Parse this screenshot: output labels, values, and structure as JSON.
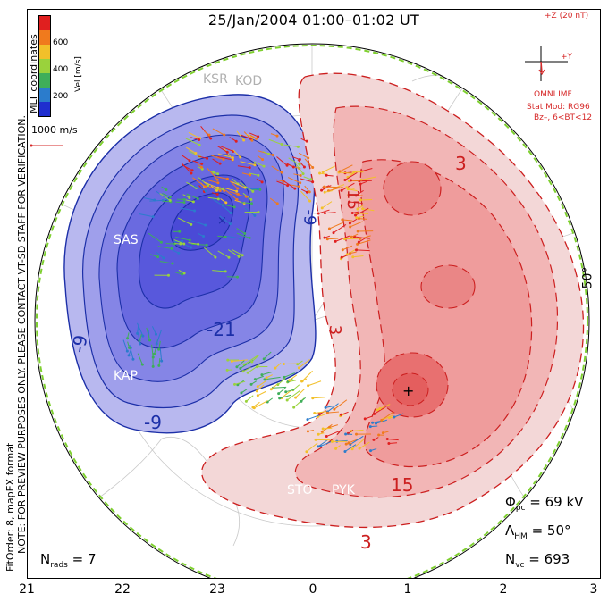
{
  "title": "25/Jan/2004 01:00–01:02 UT",
  "side_notes": {
    "note": "NOTE: FOR PREVIEW PURPOSES ONLY. PLEASE CONTACT VT-SD STAFF FOR VERIFICATION.",
    "fit": "FitOrder: 8, mapEX format"
  },
  "colorbar": {
    "header": "MLT coordinates",
    "label": "Vel [m/s]",
    "ticks": [
      "600",
      "400",
      "200"
    ],
    "colors": [
      "#e01f1f",
      "#f07a1d",
      "#f2c02a",
      "#9ad23c",
      "#3fae5a",
      "#2b7ccc",
      "#1f2ecf"
    ]
  },
  "scale": {
    "label": "1000 m/s",
    "color": "#d62828"
  },
  "imf": {
    "z_label": "+Z (20 nT)",
    "y_label": "+Y",
    "omni": "OMNI IMF",
    "stat_mod": "Stat Mod: RG96",
    "bz": "Bz–, 6<BT<12"
  },
  "latitude_label": "50°",
  "stations": [
    "KSR",
    "KOD",
    "SAS",
    "KAP",
    "STO",
    "PYK"
  ],
  "contours": {
    "negative": [
      "-9",
      "-9",
      "-21",
      "-9"
    ],
    "positive": [
      "15",
      "3",
      "3",
      "15",
      "3"
    ]
  },
  "stats": {
    "phi": {
      "sym": "Φ",
      "sub": "pc",
      "value": "= 69 kV"
    },
    "lambda": {
      "sym": "Λ",
      "sub": "HM",
      "value": "= 50°"
    },
    "nvc": {
      "sym": "N",
      "sub": "vc",
      "value": "= 693"
    },
    "nrads": {
      "sym": "N",
      "sub": "rads",
      "value": "= 7"
    }
  },
  "mlt_labels": [
    "21",
    "22",
    "23",
    "0",
    "1",
    "2",
    "3"
  ],
  "colors": {
    "negative_fill": "#5a5ae8",
    "positive_fill": "#f07a7a",
    "negative_line": "#1c2fa8",
    "positive_line": "#cc1f1f",
    "boundary": "#7fd030"
  }
}
